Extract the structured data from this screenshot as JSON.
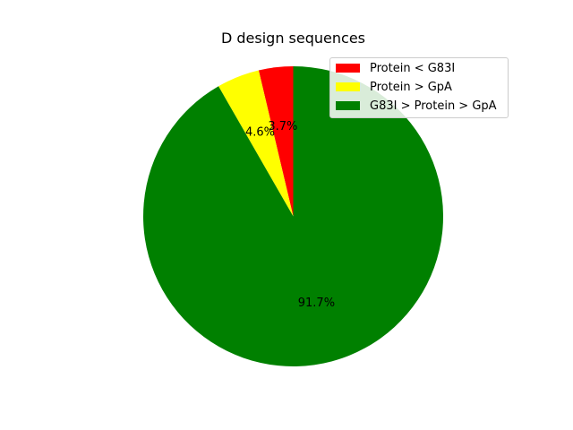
{
  "chart_data": {
    "type": "pie",
    "title": "D design sequences",
    "categories": [
      "Protein < G83I",
      "Protein > GpA",
      "G83I > Protein > GpA"
    ],
    "values": [
      3.7,
      4.6,
      91.7
    ],
    "value_labels": [
      "3.7%",
      "4.6%",
      "91.7%"
    ],
    "colors": [
      "#ff0000",
      "#ffff00",
      "#008000"
    ],
    "start_angle_deg": 90,
    "direction": "counterclockwise",
    "legend": {
      "placement": "upper right",
      "entries": [
        "Protein < G83I",
        "Protein > GpA",
        "G83I > Protein > GpA"
      ]
    }
  }
}
